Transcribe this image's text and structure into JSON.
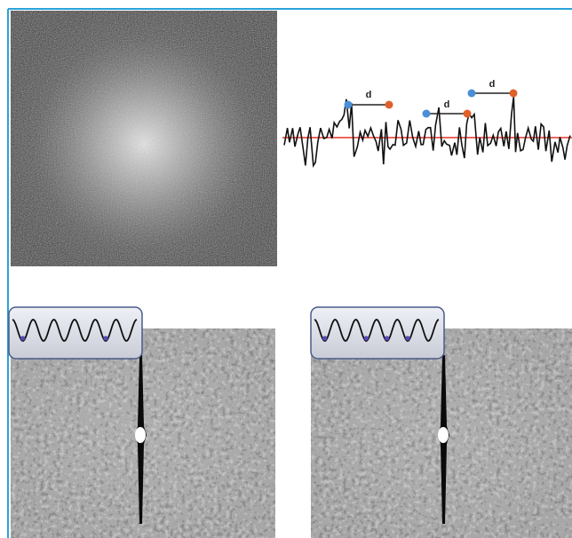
{
  "annotations": [
    {
      "label": "d"
    },
    {
      "label": "d"
    },
    {
      "label": "d"
    }
  ]
}
